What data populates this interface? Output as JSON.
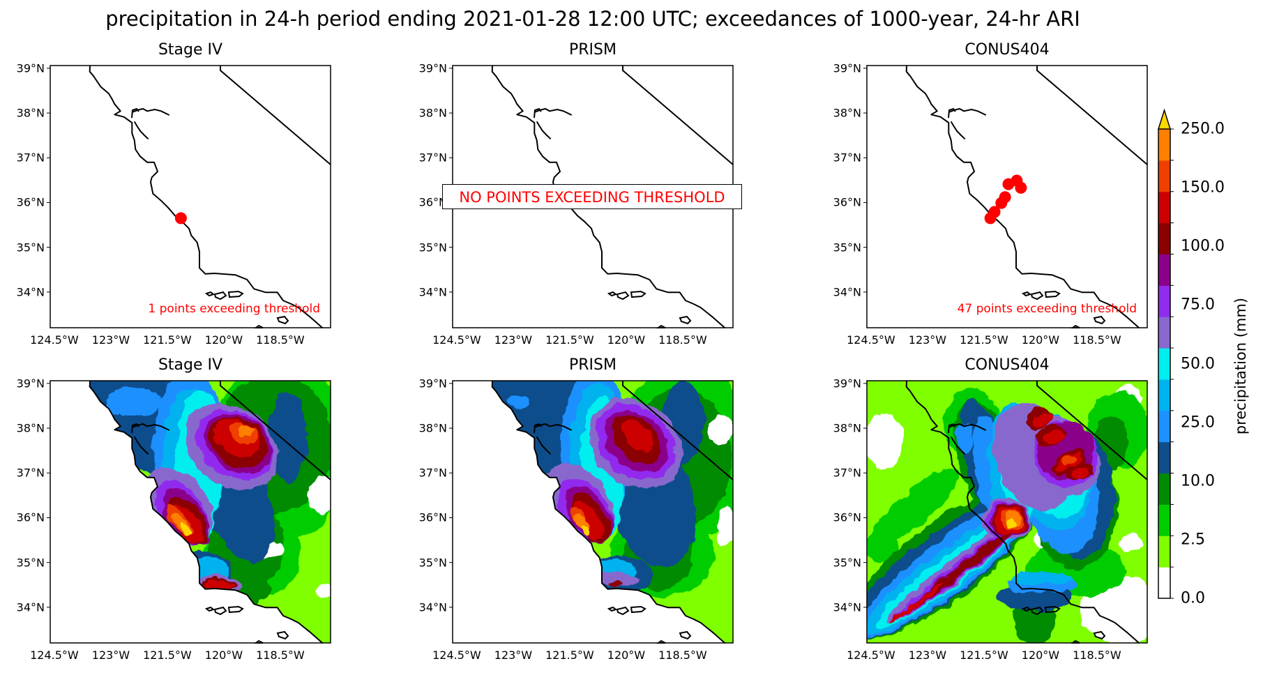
{
  "title": "precipitation in 24-h period ending 2021-01-28 12:00 UTC; exceedances of 1000-year, 24-hr ARI",
  "chart_data": {
    "type": "heatmap",
    "subtype": "map-panels",
    "grid": false,
    "lat_ticks": [
      "39°N",
      "38°N",
      "37°N",
      "36°N",
      "35°N",
      "34°N"
    ],
    "lon_ticks": [
      "124.5°W",
      "123°W",
      "121.5°W",
      "120°W",
      "118.5°W"
    ],
    "lat_tick_values": [
      39,
      38,
      37,
      36,
      35,
      34
    ],
    "lon_tick_values": [
      -124.5,
      -123,
      -121.5,
      -120,
      -118.5
    ],
    "extent": {
      "lon": [
        -124.6,
        -117.2
      ],
      "lat": [
        33.2,
        39.05
      ]
    },
    "rows": [
      {
        "panels": [
          {
            "title": "Stage IV",
            "annotation": "1 points exceeding threshold",
            "points": [
              [
                -121.14,
                35.65
              ]
            ]
          },
          {
            "title": "PRISM",
            "annotation": "NO POINTS EXCEEDING THRESHOLD",
            "points": []
          },
          {
            "title": "CONUS404",
            "annotation": "47 points exceeding threshold",
            "points": [
              [
                -121.33,
                35.65
              ],
              [
                -121.22,
                35.79
              ],
              [
                -121.04,
                35.99
              ],
              [
                -120.94,
                36.12
              ],
              [
                -120.85,
                36.41
              ],
              [
                -120.63,
                36.49
              ],
              [
                -120.52,
                36.33
              ]
            ]
          }
        ]
      },
      {
        "panels": [
          {
            "title": "Stage IV"
          },
          {
            "title": "PRISM"
          },
          {
            "title": "CONUS404"
          }
        ]
      }
    ],
    "colorbar": {
      "label": "precipitation (mm)",
      "ticks": [
        "0.0",
        "2.5",
        "10.0",
        "25.0",
        "50.0",
        "75.0",
        "100.0",
        "150.0",
        "250.0"
      ],
      "colors": [
        "#ffffff",
        "#7fff00",
        "#00cd00",
        "#008b00",
        "#104e8b",
        "#1e90ff",
        "#00b2ee",
        "#00eeee",
        "#8968cd",
        "#912cee",
        "#8b008b",
        "#8b0000",
        "#cd0000",
        "#ee4000",
        "#ff7f00",
        "#ffd700"
      ],
      "extend": "max"
    },
    "point_color": "#ff0000"
  }
}
